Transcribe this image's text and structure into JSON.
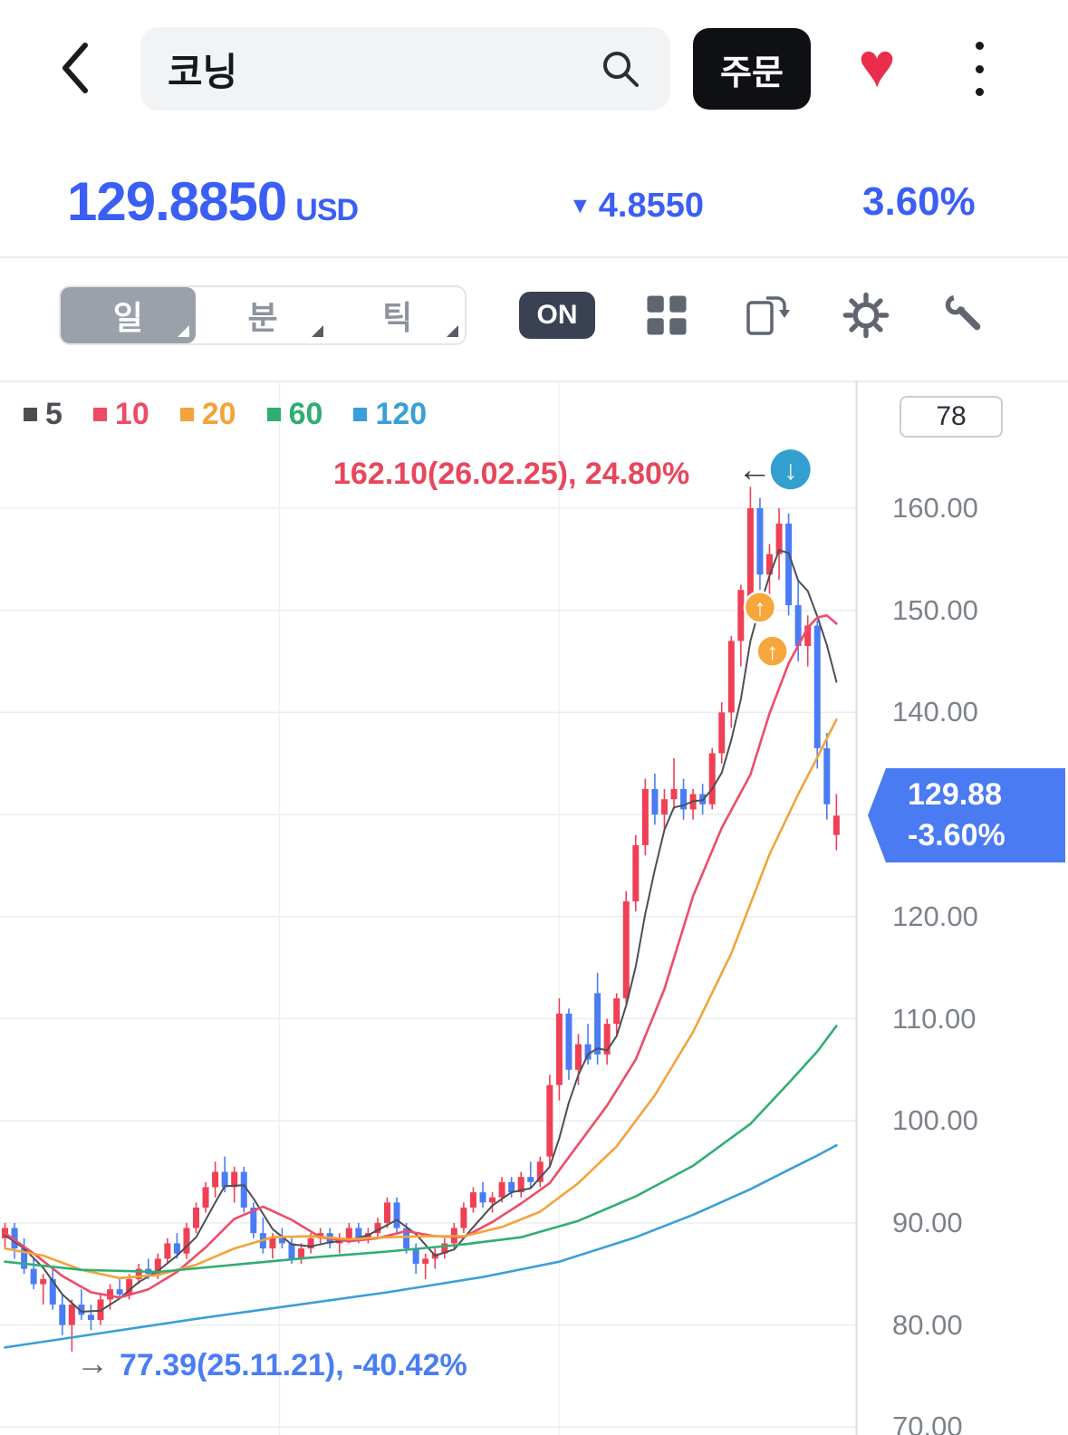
{
  "icons": {
    "heart": "♥",
    "down_triangle": "▼",
    "left_arrow": "←",
    "right_arrow": "→",
    "up_arrow": "↑",
    "down_arrow": "↓"
  },
  "header": {
    "search_value": "코닝",
    "order_label": "주문"
  },
  "price": {
    "value": "129.8850",
    "currency": "USD",
    "change": "4.8550",
    "change_pct": "3.60%"
  },
  "toolbar": {
    "day": "일",
    "minute": "분",
    "tick": "틱",
    "on": "ON"
  },
  "legend": [
    {
      "label": "5",
      "color": "#4b4f54"
    },
    {
      "label": "10",
      "color": "#ed4c67"
    },
    {
      "label": "20",
      "color": "#f2a33c"
    },
    {
      "label": "60",
      "color": "#2fae73"
    },
    {
      "label": "120",
      "color": "#3a9fd8"
    }
  ],
  "chart_data": {
    "type": "candlestick",
    "count_label": "78",
    "ylim": [
      70,
      165
    ],
    "y_ticks": [
      "160.00",
      "150.00",
      "140.00",
      "130.00",
      "120.00",
      "110.00",
      "100.00",
      "90.00",
      "80.00",
      "70.00"
    ],
    "up_color": "#ef4056",
    "down_color": "#4a7cf5",
    "grid": true,
    "candles": [
      [
        88.5,
        90,
        87.5,
        89.5
      ],
      [
        89.5,
        90,
        86.5,
        87.5
      ],
      [
        87.5,
        88.5,
        85,
        85.5
      ],
      [
        85.5,
        86.5,
        83.5,
        84
      ],
      [
        84,
        85,
        82,
        84.5
      ],
      [
        84.5,
        85.5,
        81.5,
        82
      ],
      [
        82,
        83,
        79,
        80
      ],
      [
        80,
        82.5,
        77.4,
        82
      ],
      [
        82,
        83.5,
        80.5,
        81
      ],
      [
        81,
        82,
        79.5,
        80.5
      ],
      [
        80.5,
        83,
        80,
        82.5
      ],
      [
        82.5,
        84,
        81.5,
        83.5
      ],
      [
        83.5,
        84.5,
        82.5,
        83
      ],
      [
        83,
        85,
        82.5,
        84.5
      ],
      [
        84.5,
        86,
        84,
        85.5
      ],
      [
        85.5,
        86.5,
        84.5,
        85
      ],
      [
        85,
        87,
        84.5,
        86.5
      ],
      [
        86.5,
        88.5,
        86,
        88
      ],
      [
        88,
        89,
        86.5,
        87
      ],
      [
        87,
        90,
        86.5,
        89.5
      ],
      [
        89.5,
        92,
        89,
        91.5
      ],
      [
        91.5,
        94,
        91,
        93.5
      ],
      [
        93.5,
        96,
        92.5,
        95
      ],
      [
        95,
        96.5,
        93,
        93.5
      ],
      [
        93.5,
        95.5,
        92,
        95
      ],
      [
        95,
        95.5,
        91,
        91.5
      ],
      [
        91.5,
        92,
        88.5,
        89
      ],
      [
        89,
        90.5,
        87,
        87.5
      ],
      [
        87.5,
        89,
        86.5,
        88.5
      ],
      [
        88.5,
        89.5,
        87.5,
        88
      ],
      [
        88,
        88.5,
        86,
        86.5
      ],
      [
        86.5,
        88,
        86,
        87.5
      ],
      [
        87.5,
        89,
        87,
        88.5
      ],
      [
        88.5,
        89.5,
        88,
        89
      ],
      [
        89,
        89.5,
        87.5,
        88
      ],
      [
        88,
        89,
        87,
        88.5
      ],
      [
        88.5,
        90,
        88,
        89.5
      ],
      [
        89.5,
        90,
        88,
        88.5
      ],
      [
        88.5,
        89.5,
        88,
        89
      ],
      [
        89,
        90.5,
        88.5,
        90
      ],
      [
        90,
        92.5,
        89.5,
        92
      ],
      [
        92,
        92.5,
        89,
        89.5
      ],
      [
        89.5,
        90,
        87,
        87.5
      ],
      [
        87.5,
        88,
        85,
        86
      ],
      [
        86,
        87,
        84.5,
        86.5
      ],
      [
        86.5,
        87.5,
        85.5,
        87
      ],
      [
        87,
        88.5,
        86.5,
        88
      ],
      [
        88,
        90,
        87.5,
        89.5
      ],
      [
        89.5,
        92,
        89,
        91.5
      ],
      [
        91.5,
        93.5,
        91,
        93
      ],
      [
        93,
        94,
        91.5,
        92
      ],
      [
        92,
        93,
        91,
        92.5
      ],
      [
        92.5,
        94.5,
        92,
        94
      ],
      [
        94,
        94.5,
        92.5,
        93
      ],
      [
        93,
        95,
        92.5,
        94.5
      ],
      [
        94.5,
        96,
        93.5,
        94
      ],
      [
        94,
        96.5,
        93.5,
        96
      ],
      [
        96.5,
        104.5,
        95.5,
        103.5
      ],
      [
        103.5,
        112,
        102,
        110.5
      ],
      [
        110.5,
        111,
        104,
        105
      ],
      [
        105,
        108.5,
        103.5,
        107.5
      ],
      [
        107.5,
        109.5,
        105.5,
        106
      ],
      [
        112.5,
        114.5,
        105.5,
        106.5
      ],
      [
        106.5,
        110,
        105.5,
        109.5
      ],
      [
        109.5,
        112.5,
        108.5,
        112
      ],
      [
        112,
        122.5,
        111.5,
        121.5
      ],
      [
        121.5,
        128,
        120.5,
        127
      ],
      [
        127,
        133.5,
        126,
        132.5
      ],
      [
        132.5,
        134,
        129,
        130
      ],
      [
        130,
        132.5,
        128.5,
        131.5
      ],
      [
        131.5,
        135.5,
        130.5,
        132.5
      ],
      [
        132.5,
        133.5,
        129.5,
        130.5
      ],
      [
        130.5,
        132.5,
        129.5,
        132
      ],
      [
        132,
        133,
        130,
        131
      ],
      [
        131,
        136.5,
        130.5,
        136
      ],
      [
        136,
        141,
        135,
        140
      ],
      [
        140,
        147.5,
        138.5,
        147
      ],
      [
        147,
        152.5,
        144.5,
        152
      ],
      [
        150,
        162.1,
        149,
        160
      ],
      [
        160,
        161,
        152,
        153.5
      ],
      [
        153.5,
        156.5,
        151.5,
        155.5
      ],
      [
        155.5,
        160,
        153,
        158.5
      ],
      [
        158.5,
        159.5,
        149.5,
        150.5
      ],
      [
        150.5,
        153,
        145,
        146.5
      ],
      [
        146.5,
        149.5,
        144.5,
        148.5
      ],
      [
        148.5,
        149,
        134.5,
        136.5
      ],
      [
        136.5,
        138,
        129.5,
        131
      ],
      [
        128,
        132,
        126.5,
        129.885
      ]
    ],
    "ma_series": [
      {
        "name": "5",
        "color": "#4b4f54",
        "width": 2,
        "points": [
          [
            0,
            88.8
          ],
          [
            2,
            87.5
          ],
          [
            4,
            85.6
          ],
          [
            6,
            83
          ],
          [
            8,
            81.3
          ],
          [
            10,
            81.4
          ],
          [
            12,
            82.6
          ],
          [
            14,
            84.2
          ],
          [
            16,
            85.3
          ],
          [
            18,
            86.8
          ],
          [
            20,
            88.6
          ],
          [
            22,
            92
          ],
          [
            23,
            93.6
          ],
          [
            25,
            93.7
          ],
          [
            26,
            92.4
          ],
          [
            28,
            89.4
          ],
          [
            30,
            87.9
          ],
          [
            32,
            87.7
          ],
          [
            34,
            88.1
          ],
          [
            36,
            88.3
          ],
          [
            38,
            88.8
          ],
          [
            40,
            89.8
          ],
          [
            41,
            90.3
          ],
          [
            43,
            88.9
          ],
          [
            45,
            86.8
          ],
          [
            47,
            87.4
          ],
          [
            49,
            89.6
          ],
          [
            51,
            91.7
          ],
          [
            53,
            93
          ],
          [
            55,
            93.4
          ],
          [
            57,
            95.5
          ],
          [
            58,
            98.3
          ],
          [
            59,
            101.8
          ],
          [
            60,
            104.5
          ],
          [
            61,
            106.5
          ],
          [
            62,
            107.1
          ],
          [
            63,
            106.9
          ],
          [
            64,
            108.3
          ],
          [
            65,
            111.3
          ],
          [
            66,
            115.1
          ],
          [
            67,
            120.3
          ],
          [
            68,
            124.6
          ],
          [
            69,
            128.5
          ],
          [
            70,
            130.7
          ],
          [
            71,
            130.9
          ],
          [
            72,
            131.3
          ],
          [
            73,
            131.4
          ],
          [
            74,
            132.5
          ],
          [
            75,
            134.1
          ],
          [
            76,
            137.3
          ],
          [
            77,
            141.3
          ],
          [
            78,
            147
          ],
          [
            79,
            150.4
          ],
          [
            80,
            153.4
          ],
          [
            81,
            155.9
          ],
          [
            82,
            155.6
          ],
          [
            83,
            152.9
          ],
          [
            84,
            151.9
          ],
          [
            85,
            149.4
          ],
          [
            86,
            146.6
          ],
          [
            87,
            143
          ]
        ]
      },
      {
        "name": "10",
        "color": "#ed4c67",
        "width": 2.6,
        "points": [
          [
            0,
            89
          ],
          [
            3,
            87
          ],
          [
            6,
            84.8
          ],
          [
            9,
            83.2
          ],
          [
            12,
            82.7
          ],
          [
            15,
            83.5
          ],
          [
            18,
            85.2
          ],
          [
            21,
            87.6
          ],
          [
            24,
            90.4
          ],
          [
            27,
            91.6
          ],
          [
            30,
            90.3
          ],
          [
            33,
            88.6
          ],
          [
            36,
            88.2
          ],
          [
            39,
            88.5
          ],
          [
            42,
            89.2
          ],
          [
            45,
            88.7
          ],
          [
            48,
            88.6
          ],
          [
            51,
            90.1
          ],
          [
            54,
            91.9
          ],
          [
            57,
            93.9
          ],
          [
            60,
            97.7
          ],
          [
            63,
            101.5
          ],
          [
            66,
            106
          ],
          [
            69,
            112.9
          ],
          [
            72,
            122
          ],
          [
            75,
            128.7
          ],
          [
            78,
            133.9
          ],
          [
            80,
            139.9
          ],
          [
            82,
            144.8
          ],
          [
            84,
            148.3
          ],
          [
            85,
            149.3
          ],
          [
            86,
            149.5
          ],
          [
            87,
            148.7
          ]
        ]
      },
      {
        "name": "20",
        "color": "#f2a33c",
        "width": 2.6,
        "points": [
          [
            0,
            87.5
          ],
          [
            4,
            86.8
          ],
          [
            8,
            85.4
          ],
          [
            12,
            84.6
          ],
          [
            16,
            84.9
          ],
          [
            20,
            85.9
          ],
          [
            24,
            87.5
          ],
          [
            28,
            88.6
          ],
          [
            32,
            88.7
          ],
          [
            36,
            88.4
          ],
          [
            40,
            88.6
          ],
          [
            44,
            88.7
          ],
          [
            48,
            88.7
          ],
          [
            52,
            89.6
          ],
          [
            56,
            91.1
          ],
          [
            60,
            93.9
          ],
          [
            64,
            97.5
          ],
          [
            68,
            102.5
          ],
          [
            72,
            108.7
          ],
          [
            76,
            116.4
          ],
          [
            80,
            126.1
          ],
          [
            83,
            132
          ],
          [
            85,
            135.6
          ],
          [
            87,
            139.3
          ]
        ]
      },
      {
        "name": "60",
        "color": "#2fae73",
        "width": 2.6,
        "points": [
          [
            0,
            86.2
          ],
          [
            8,
            85.4
          ],
          [
            16,
            85.2
          ],
          [
            24,
            85.9
          ],
          [
            32,
            86.6
          ],
          [
            40,
            87.2
          ],
          [
            48,
            87.9
          ],
          [
            54,
            88.6
          ],
          [
            60,
            90.2
          ],
          [
            66,
            92.6
          ],
          [
            72,
            95.6
          ],
          [
            78,
            99.7
          ],
          [
            82,
            103.7
          ],
          [
            85,
            106.8
          ],
          [
            87,
            109.3
          ]
        ]
      },
      {
        "name": "120",
        "color": "#3a9fd8",
        "width": 2.6,
        "points": [
          [
            0,
            77.8
          ],
          [
            10,
            79.2
          ],
          [
            20,
            80.6
          ],
          [
            30,
            81.9
          ],
          [
            40,
            83.2
          ],
          [
            50,
            84.7
          ],
          [
            58,
            86.2
          ],
          [
            66,
            88.6
          ],
          [
            72,
            90.8
          ],
          [
            78,
            93.3
          ],
          [
            82,
            95.2
          ],
          [
            85,
            96.6
          ],
          [
            87,
            97.6
          ]
        ]
      }
    ],
    "trade_markers": [
      {
        "idx": 79,
        "price": 150.3
      },
      {
        "idx": 80.3,
        "price": 146.0
      }
    ],
    "peak_marker": {
      "idx": 82.2,
      "price": 163.8
    },
    "annotations": {
      "high": {
        "text": "162.10(26.02.25), 24.80%"
      },
      "low": {
        "text": "77.39(25.11.21), -40.42%"
      }
    },
    "price_tag": {
      "line1": "129.88",
      "line2": "-3.60%"
    }
  }
}
